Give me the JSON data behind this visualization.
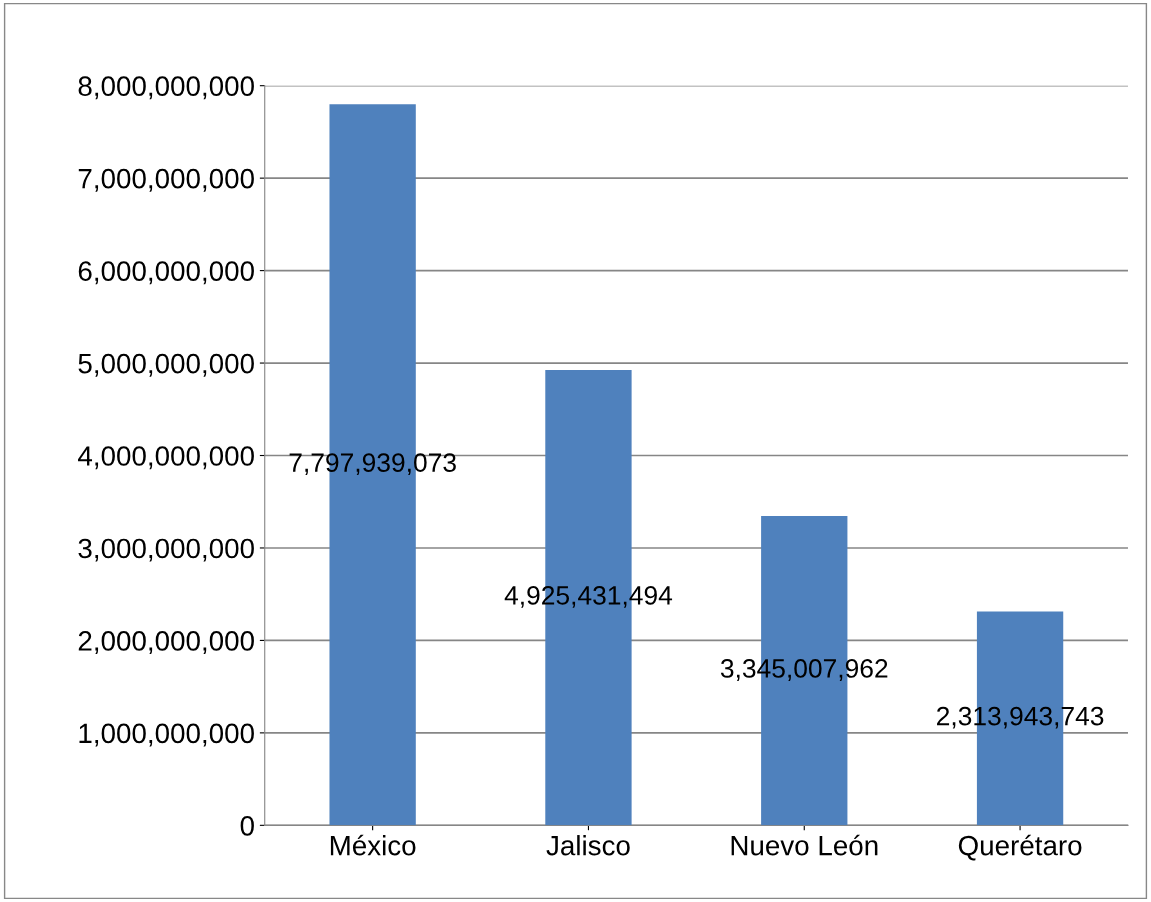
{
  "chart_data": {
    "type": "bar",
    "categories": [
      "México",
      "Jalisco",
      "Nuevo León",
      "Querétaro"
    ],
    "values": [
      7797939073,
      4925431494,
      3345007962,
      2313943743
    ],
    "color": "#4f81bd",
    "ylim": [
      0,
      8000000000
    ],
    "yticks": [
      {
        "value": 0,
        "label": "0"
      },
      {
        "value": 1000000000,
        "label": "1,000,000,000"
      },
      {
        "value": 2000000000,
        "label": "2,000,000,000"
      },
      {
        "value": 3000000000,
        "label": "3,000,000,000"
      },
      {
        "value": 4000000000,
        "label": "4,000,000,000"
      },
      {
        "value": 5000000000,
        "label": "5,000,000,000"
      },
      {
        "value": 6000000000,
        "label": "6,000,000,000"
      },
      {
        "value": 7000000000,
        "label": "7,000,000,000"
      },
      {
        "value": 8000000000,
        "label": "8,000,000,000"
      }
    ],
    "value_labels": [
      "7,797,939,073",
      "4,925,431,494",
      "3,345,007,962",
      "2,313,943,743"
    ],
    "grid": "y"
  }
}
